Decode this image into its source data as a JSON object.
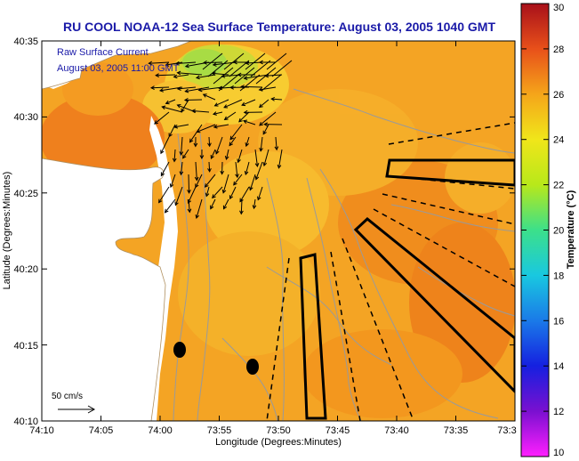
{
  "title": "RU COOL  NOAA-12  Sea Surface Temperature:  August 03, 2005 1040 GMT",
  "legend": {
    "line1": "Raw Surface Current",
    "line2": "August 03, 2005 11:00 GMT"
  },
  "axes": {
    "xlabel": "Longitude (Degrees:Minutes)",
    "ylabel": "Latitude (Degrees:Minutes)",
    "x_ticks": [
      "74:10",
      "74:05",
      "74:00",
      "73:55",
      "73:50",
      "73:45",
      "73:40",
      "73:35",
      "73:3"
    ],
    "y_ticks": [
      "40:35",
      "40:30",
      "40:25",
      "40:20",
      "40:15",
      "40:10"
    ]
  },
  "scale_arrow": {
    "label": "50 cm/s"
  },
  "colorbar": {
    "title": "Temperature (°C)",
    "ticks": [
      "30",
      "28",
      "26",
      "24",
      "22",
      "20",
      "18",
      "16",
      "14",
      "12",
      "10"
    ],
    "min": 10,
    "max": 30
  },
  "colors": {
    "title": "#1a1aa8",
    "legend_text": "#1a1aa8",
    "land": "#ffffff",
    "sst_base": "#f5a623",
    "contour": "#9a9a9a"
  }
}
